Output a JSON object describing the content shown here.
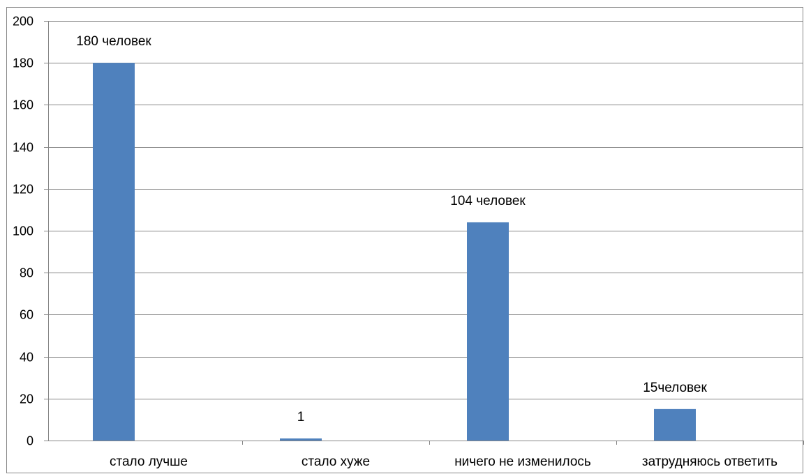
{
  "chart_data": {
    "type": "bar",
    "categories": [
      "стало лучше",
      "стало хуже",
      "ничего не изменилось",
      "затрудняюсь ответить"
    ],
    "values": [
      180,
      1,
      104,
      15
    ],
    "data_labels": [
      "180 человек",
      "1",
      "104 человек",
      "15человек"
    ],
    "ylim": [
      0,
      200
    ],
    "yticks": [
      0,
      20,
      40,
      60,
      80,
      100,
      120,
      140,
      160,
      180,
      200
    ],
    "grid": true,
    "legend": "none",
    "colors": {
      "bar": "#4f81bd",
      "grid": "#868686",
      "axis": "#868686"
    }
  }
}
